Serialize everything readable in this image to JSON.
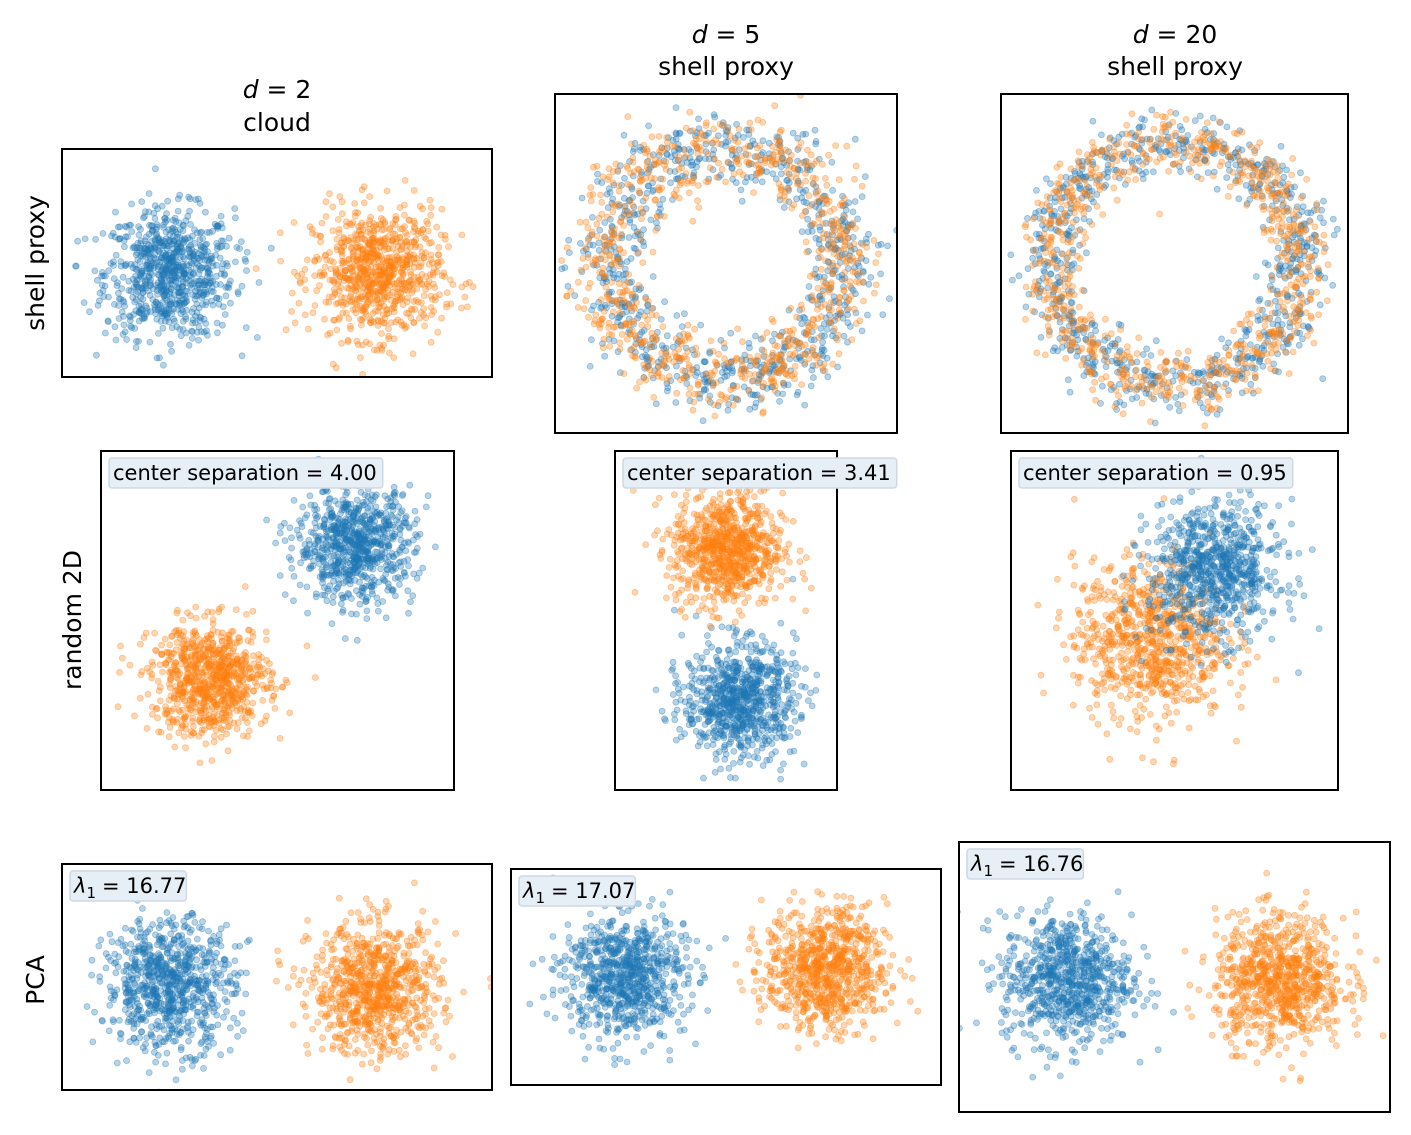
{
  "colors": {
    "class_a": "#1f77b4",
    "class_b": "#ff7f0e"
  },
  "chart_data": {
    "type": "scatter",
    "title": "",
    "grid": false,
    "param_symbol": "d",
    "columns": [
      {
        "d": "2",
        "subtitle": "cloud"
      },
      {
        "d": "5",
        "subtitle": "shell proxy"
      },
      {
        "d": "20",
        "subtitle": "shell proxy"
      }
    ],
    "rows": [
      {
        "label": "shell proxy"
      },
      {
        "label": "random 2D"
      },
      {
        "label": "PCA"
      }
    ],
    "panels": [
      {
        "row": 0,
        "col": 0,
        "xlim": [
          -3,
          9
        ],
        "ylim": [
          -2.9,
          3.5
        ],
        "annotation": null,
        "clusters": [
          {
            "series": "class_a",
            "kind": "gaussian",
            "center": [
              0,
              0
            ],
            "std": 0.9,
            "n": 800
          },
          {
            "series": "class_b",
            "kind": "gaussian",
            "center": [
              5.8,
              0
            ],
            "std": 0.9,
            "n": 800
          }
        ]
      },
      {
        "row": 0,
        "col": 1,
        "xlim": [
          -3,
          3
        ],
        "ylim": [
          -3,
          3
        ],
        "annotation": null,
        "clusters": [
          {
            "series": "class_a",
            "kind": "ring",
            "center": [
              0,
              0
            ],
            "radius": 2.07,
            "std": 0.33,
            "n": 800
          },
          {
            "series": "class_b",
            "kind": "ring",
            "center": [
              0,
              0
            ],
            "radius": 2.07,
            "std": 0.33,
            "n": 800
          }
        ]
      },
      {
        "row": 0,
        "col": 2,
        "xlim": [
          -3,
          3
        ],
        "ylim": [
          -3,
          3
        ],
        "annotation": null,
        "clusters": [
          {
            "series": "class_a",
            "kind": "ring",
            "center": [
              0,
              0
            ],
            "radius": 2.16,
            "std": 0.26,
            "n": 800
          },
          {
            "series": "class_b",
            "kind": "ring",
            "center": [
              0,
              0
            ],
            "radius": 2.16,
            "std": 0.26,
            "n": 800
          }
        ]
      },
      {
        "row": 1,
        "col": 0,
        "xlim": [
          -3,
          3
        ],
        "ylim": [
          -3,
          3
        ],
        "annotation": {
          "label": "center separation = 4.00"
        },
        "clusters": [
          {
            "series": "class_a",
            "kind": "gaussian",
            "center": [
              1.32,
              1.34
            ],
            "std": 0.5,
            "n": 800
          },
          {
            "series": "class_b",
            "kind": "gaussian",
            "center": [
              -1.15,
              -1.05
            ],
            "std": 0.5,
            "n": 800
          }
        ]
      },
      {
        "row": 1,
        "col": 1,
        "xlim": [
          -2,
          2
        ],
        "ylim": [
          -3,
          3
        ],
        "annotation": {
          "label": "center separation = 3.41"
        },
        "clusters": [
          {
            "series": "class_a",
            "kind": "gaussian",
            "center": [
              0.25,
              -1.41
            ],
            "std": 0.5,
            "n": 800
          },
          {
            "series": "class_b",
            "kind": "gaussian",
            "center": [
              0.02,
              1.25
            ],
            "std": 0.5,
            "n": 800
          }
        ]
      },
      {
        "row": 1,
        "col": 2,
        "xlim": [
          -3,
          3
        ],
        "ylim": [
          -3,
          3
        ],
        "annotation": {
          "label": "center separation = 0.95"
        },
        "clusters": [
          {
            "series": "class_b",
            "kind": "gaussian",
            "center": [
              -0.45,
              -0.35
            ],
            "std": 0.7,
            "n": 800
          },
          {
            "series": "class_a",
            "kind": "gaussian",
            "center": [
              0.74,
              0.89
            ],
            "std": 0.6,
            "n": 800
          }
        ]
      },
      {
        "row": 2,
        "col": 0,
        "xlim": [
          -3,
          9
        ],
        "ylim": [
          -3,
          3.3
        ],
        "annotation": {
          "symbol": "λ",
          "index": "1",
          "value": "= 16.77"
        },
        "clusters": [
          {
            "series": "class_a",
            "kind": "gaussian",
            "center": [
              0,
              -0.07
            ],
            "std": 0.9,
            "n": 800
          },
          {
            "series": "class_b",
            "kind": "gaussian",
            "center": [
              5.75,
              -0.2
            ],
            "std": 0.9,
            "n": 800
          }
        ]
      },
      {
        "row": 2,
        "col": 1,
        "xlim": [
          -3,
          9
        ],
        "ylim": [
          -3,
          3.03
        ],
        "annotation": {
          "symbol": "λ",
          "index": "1",
          "value": "= 17.07"
        },
        "clusters": [
          {
            "series": "class_a",
            "kind": "gaussian",
            "center": [
              0.18,
              0.07
            ],
            "std": 0.85,
            "n": 800
          },
          {
            "series": "class_b",
            "kind": "gaussian",
            "center": [
              5.77,
              0.21
            ],
            "std": 0.85,
            "n": 800
          }
        ]
      },
      {
        "row": 2,
        "col": 2,
        "xlim": [
          -3,
          9
        ],
        "ylim": [
          -3.7,
          3.82
        ],
        "annotation": {
          "symbol": "λ",
          "index": "1",
          "value": "= 16.76"
        },
        "clusters": [
          {
            "series": "class_a",
            "kind": "gaussian",
            "center": [
              0,
              -0.02
            ],
            "std": 0.9,
            "n": 800
          },
          {
            "series": "class_b",
            "kind": "gaussian",
            "center": [
              5.94,
              -0.02
            ],
            "std": 0.9,
            "n": 800
          }
        ]
      }
    ]
  }
}
